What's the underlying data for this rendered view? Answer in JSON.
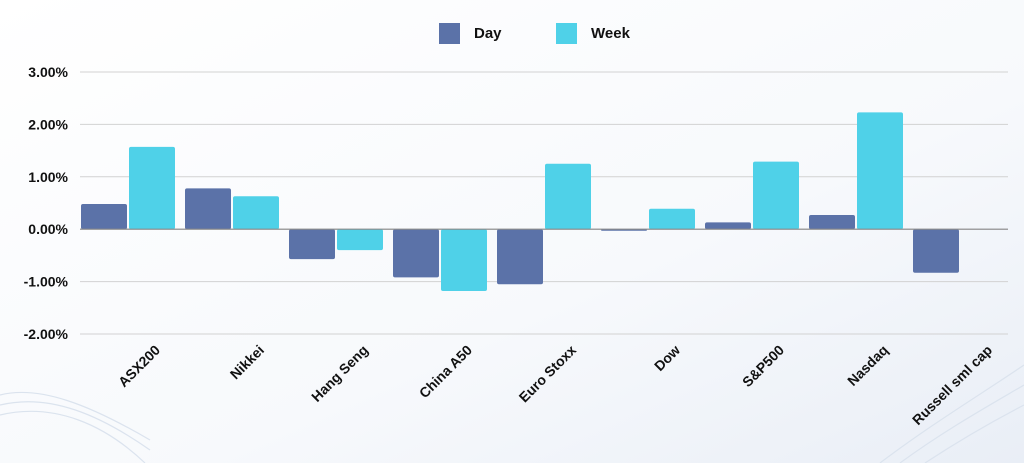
{
  "chart_data": {
    "type": "bar",
    "categories": [
      "ASX200",
      "Nikkei",
      "Hang Seng",
      "China A50",
      "Euro Stoxx",
      "Dow",
      "S&P500",
      "Nasdaq",
      "Russell sml cap"
    ],
    "series": [
      {
        "name": "Day",
        "color": "#5b72a8",
        "values": [
          0.48,
          0.78,
          -0.57,
          -0.92,
          -1.05,
          -0.03,
          0.13,
          0.27,
          -0.83
        ]
      },
      {
        "name": "Week",
        "color": "#4fd1e8",
        "values": [
          1.57,
          0.63,
          -0.4,
          -1.18,
          1.25,
          0.39,
          1.29,
          2.23,
          null
        ]
      }
    ],
    "yticks": [
      "3.00%",
      "2.00%",
      "1.00%",
      "0.00%",
      "-1.00%",
      "-2.00%"
    ],
    "ylim": [
      -2,
      3
    ],
    "grid": true,
    "legend_position": "top-center",
    "title": "",
    "xlabel": "",
    "ylabel": ""
  }
}
